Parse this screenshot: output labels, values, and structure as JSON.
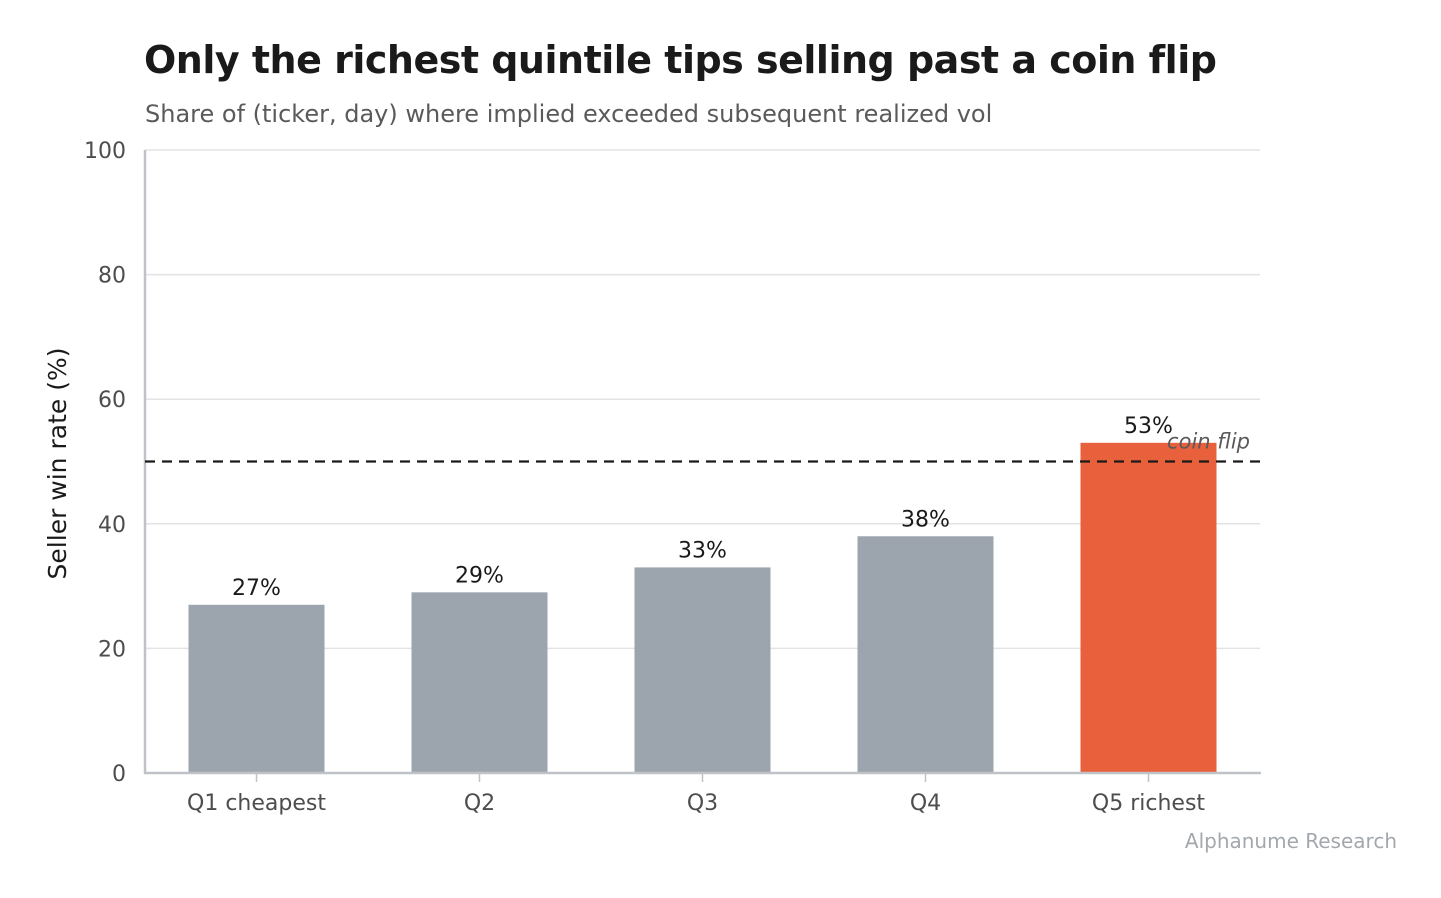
{
  "chart_data": {
    "type": "bar",
    "title": "Only the richest quintile tips selling past a coin flip",
    "subtitle": "Share of (ticker, day) where implied exceeded subsequent realized vol",
    "xlabel": "",
    "ylabel": "Seller win rate (%)",
    "ylim": [
      0,
      100
    ],
    "yticks": [
      0,
      20,
      40,
      60,
      80,
      100
    ],
    "grid": "horizontal",
    "categories": [
      "Q1 cheapest",
      "Q2",
      "Q3",
      "Q4",
      "Q5 richest"
    ],
    "values": [
      27,
      29,
      33,
      38,
      53
    ],
    "value_labels": [
      "27%",
      "29%",
      "33%",
      "38%",
      "53%"
    ],
    "highlight_index": 4,
    "colors": {
      "bar": "#9ca5ad",
      "highlight": "#e8603c",
      "grid": "#e3e3e3",
      "axis": "#bfc3c7",
      "reference": "#1a1a1a"
    },
    "reference_line": {
      "value": 50,
      "label": "coin flip",
      "style": "dashed"
    }
  },
  "source": "Alphanume Research"
}
